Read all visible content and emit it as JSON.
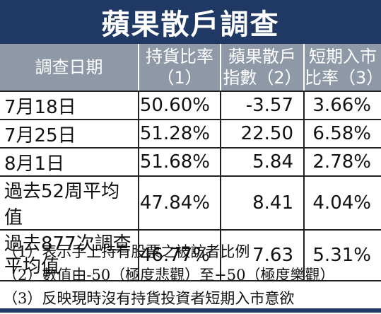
{
  "title": "蘋果散戶調查",
  "headers": [
    {
      "line1": "調查日期",
      "line2": ""
    },
    {
      "line1": "持貨比率",
      "line2": "（1）"
    },
    {
      "line1": "蘋果散戶",
      "line2": "指數（2）"
    },
    {
      "line1": "短期入市",
      "line2": "比率（3）"
    }
  ],
  "rows": [
    {
      "date": "7月18日",
      "holding": "50.60%",
      "index": "-3.57",
      "short_term": "3.66%"
    },
    {
      "date": "7月25日",
      "holding": "51.28%",
      "index": "22.50",
      "short_term": "6.58%"
    },
    {
      "date": "8月1日",
      "holding": "51.68%",
      "index": "5.84",
      "short_term": "2.78%"
    },
    {
      "date": "過去52周平均值",
      "holding": "47.84%",
      "index": "8.41",
      "short_term": "4.04%"
    },
    {
      "date": "過去877次調查平均值",
      "date_line1": "過去877次調查",
      "date_line2": "平均值",
      "holding": "46.77%",
      "index": "7.63",
      "short_term": "5.31%"
    }
  ],
  "notes": [
    "（1）表示手上持有股票之被訪者比例",
    "（2）數值由-50（極度悲觀）至+50（極度樂觀）",
    "（3）反映現時沒有持貨投資者短期入市意欲"
  ],
  "colors": {
    "title_bg": "#1f3864",
    "header_bg": "#8f98a7"
  }
}
